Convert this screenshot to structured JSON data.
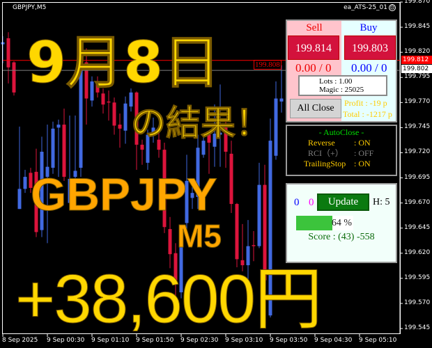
{
  "window": {
    "symbol": "GBPJPY,M5",
    "ea_name": "ea_ATS-25_01",
    "ea_status_icon": "frown-face-icon"
  },
  "colors": {
    "bull": "#4169e1",
    "bear": "#dc143c",
    "bid_line": "#ff0000",
    "ask_line": "#808080",
    "overlay_yellow": "#ffd700",
    "overlay_orange": "#ffa500"
  },
  "price_axis": {
    "labels": [
      "199.870",
      "199.845",
      "199.820",
      "199.795",
      "199.770",
      "199.745",
      "199.720",
      "199.695",
      "199.670",
      "199.645",
      "199.620",
      "199.595",
      "199.570",
      "199.545"
    ],
    "bid_tag": "199.812",
    "ask_tag": "199.802"
  },
  "time_axis": {
    "labels": [
      "8 Sep 2025",
      "9 Sep 00:30",
      "9 Sep 01:10",
      "9 Sep 01:50",
      "9 Sep 02:30",
      "9 Sep 03:10",
      "9 Sep 03:50",
      "9 Sep 04:30",
      "9 Sep 05:10"
    ]
  },
  "chart_data": {
    "type": "candlestick",
    "ylim": [
      199.545,
      199.87
    ],
    "bid": 199.812,
    "ask": 199.802,
    "candles_ochl": [
      [
        199.828,
        199.83,
        199.836,
        199.809
      ],
      [
        199.834,
        199.805,
        199.84,
        199.789
      ],
      [
        199.81,
        199.78,
        199.811,
        199.777
      ],
      [
        199.664,
        199.684,
        199.746,
        199.664
      ],
      [
        199.684,
        199.696,
        199.703,
        199.68
      ],
      [
        199.7,
        199.685,
        199.705,
        199.68
      ],
      [
        199.701,
        199.641,
        199.724,
        199.636
      ],
      [
        199.643,
        199.721,
        199.736,
        199.636
      ],
      [
        199.696,
        199.706,
        199.748,
        199.63
      ],
      [
        199.705,
        199.744,
        199.751,
        199.699
      ],
      [
        199.745,
        199.748,
        199.753,
        199.696
      ],
      [
        199.748,
        199.696,
        199.764,
        199.692
      ],
      [
        199.67,
        199.694,
        199.757,
        199.666
      ],
      [
        199.696,
        199.702,
        199.757,
        199.664
      ],
      [
        199.705,
        199.82,
        199.821,
        199.696
      ],
      [
        199.81,
        199.774,
        199.824,
        199.748
      ],
      [
        199.772,
        199.791,
        199.796,
        199.766
      ],
      [
        199.789,
        199.78,
        199.796,
        199.775
      ],
      [
        199.779,
        199.768,
        199.784,
        199.759
      ],
      [
        199.771,
        199.77,
        199.782,
        199.752
      ],
      [
        199.77,
        199.747,
        199.775,
        199.738
      ],
      [
        199.748,
        199.744,
        199.759,
        199.725
      ],
      [
        199.742,
        199.769,
        199.776,
        199.729
      ],
      [
        199.766,
        199.78,
        199.784,
        199.761
      ],
      [
        199.78,
        199.728,
        199.781,
        199.703
      ],
      [
        199.728,
        199.723,
        199.733,
        199.708
      ],
      [
        199.71,
        199.738,
        199.743,
        199.703
      ],
      [
        199.738,
        199.745,
        199.755,
        199.73
      ],
      [
        199.733,
        199.723,
        199.74,
        199.715
      ],
      [
        199.723,
        199.646,
        199.73,
        199.64
      ],
      [
        199.644,
        199.619,
        199.656,
        199.605
      ],
      [
        199.62,
        199.593,
        199.63,
        199.567
      ],
      [
        199.581,
        199.636,
        199.645,
        199.575
      ],
      [
        199.65,
        199.692,
        199.718,
        199.64
      ],
      [
        199.675,
        199.68,
        199.692,
        199.664
      ],
      [
        199.676,
        199.725,
        199.738,
        199.664
      ],
      [
        199.718,
        199.732,
        199.738,
        199.715
      ],
      [
        199.738,
        199.73,
        199.74,
        199.699
      ],
      [
        199.726,
        199.739,
        199.768,
        199.706
      ],
      [
        199.738,
        199.74,
        199.788,
        199.706
      ],
      [
        199.745,
        199.721,
        199.752,
        199.705
      ],
      [
        199.719,
        199.669,
        199.732,
        199.66
      ],
      [
        199.669,
        199.614,
        199.67,
        199.606
      ],
      [
        199.613,
        199.608,
        199.649,
        199.602
      ],
      [
        199.608,
        199.627,
        199.653,
        199.579
      ],
      [
        199.628,
        199.627,
        199.642,
        199.612
      ],
      [
        199.627,
        199.688,
        199.71,
        199.625
      ],
      [
        199.688,
        199.593,
        199.708,
        199.551
      ],
      [
        199.558,
        199.732,
        199.754,
        199.556
      ],
      [
        199.717,
        199.774,
        199.791,
        199.713
      ],
      [
        199.771,
        199.774,
        199.807,
        199.76
      ]
    ]
  },
  "overlay": {
    "date": "9月8日",
    "result": "の結果！",
    "pair": "GBPJPY",
    "timeframe": "M5",
    "profit": "+38,600円"
  },
  "trade_panel": {
    "sell_label": "Sell",
    "buy_label": "Buy",
    "sell_price": "199.814",
    "buy_price": "199.803",
    "sell_pl": "0.00 / 0",
    "buy_pl": "0.00 / 0",
    "price_tag": "199.808",
    "lots": "Lots   : 1.00",
    "magic": "Magic : 25025",
    "profit": "Profit : -19 p",
    "total": "Total : -1217 p",
    "all_close": "All Close"
  },
  "autoclose_panel": {
    "title": "- AutoClose -",
    "rows": [
      {
        "label": "Reverse",
        "value": ": ON",
        "color": "#ffcc00"
      },
      {
        "label": "RCI（+）",
        "value": ": OFF",
        "color": "#808080"
      },
      {
        "label": "TrailingStop",
        "value": ": ON",
        "color": "#ffcc00"
      }
    ]
  },
  "update_panel": {
    "count_blue": "0",
    "count_magenta": "0",
    "update_label": "Update",
    "h_label": "H: 5",
    "progress_percent": 64,
    "progress_text": "64 %",
    "score": "Score : (43) -558"
  }
}
